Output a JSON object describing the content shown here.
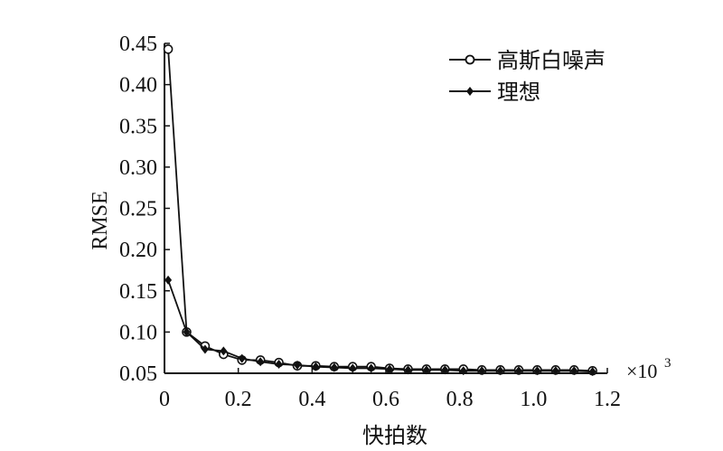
{
  "chart_data": {
    "type": "line",
    "title": "",
    "xlabel": "快拍数",
    "ylabel": "RMSE",
    "x_multiplier": {
      "base": "×10",
      "exponent": "3"
    },
    "xlim": [
      0,
      1.2
    ],
    "ylim": [
      0.05,
      0.45
    ],
    "x_ticks": [
      "0",
      "0.2",
      "0.4",
      "0.6",
      "0.8",
      "1.0",
      "1.2"
    ],
    "y_ticks": [
      "0.05",
      "0.10",
      "0.15",
      "0.20",
      "0.25",
      "0.30",
      "0.35",
      "0.40",
      "0.45"
    ],
    "x": [
      0.01,
      0.06,
      0.11,
      0.16,
      0.21,
      0.26,
      0.31,
      0.36,
      0.41,
      0.46,
      0.51,
      0.56,
      0.61,
      0.66,
      0.71,
      0.76,
      0.81,
      0.86,
      0.91,
      0.96,
      1.01,
      1.06,
      1.11,
      1.16
    ],
    "series": [
      {
        "name": "高斯白噪声",
        "marker": "circle",
        "values": [
          0.443,
          0.1,
          0.083,
          0.073,
          0.066,
          0.066,
          0.063,
          0.059,
          0.059,
          0.058,
          0.058,
          0.058,
          0.056,
          0.055,
          0.055,
          0.055,
          0.055,
          0.054,
          0.054,
          0.054,
          0.054,
          0.054,
          0.054,
          0.053
        ]
      },
      {
        "name": "理想",
        "marker": "diamond",
        "values": [
          0.163,
          0.1,
          0.079,
          0.077,
          0.068,
          0.064,
          0.061,
          0.06,
          0.058,
          0.057,
          0.056,
          0.056,
          0.055,
          0.054,
          0.054,
          0.054,
          0.053,
          0.053,
          0.053,
          0.053,
          0.053,
          0.053,
          0.053,
          0.052
        ]
      }
    ],
    "grid": false,
    "legend_position": "top-right",
    "colors": {
      "line": "#111111"
    }
  }
}
